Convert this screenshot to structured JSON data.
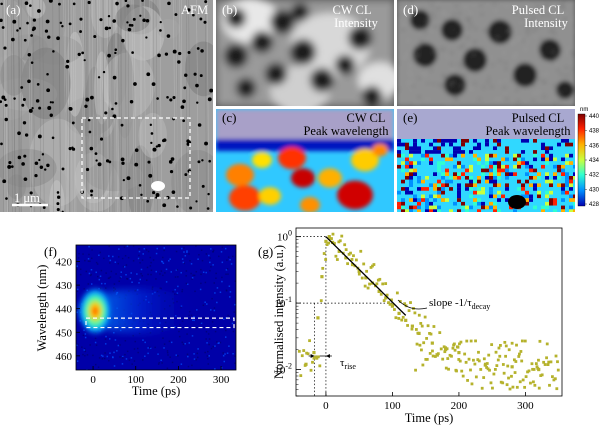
{
  "panels": {
    "a": {
      "letter": "(a)",
      "title": "AFM",
      "scale_bar": "1 μm"
    },
    "b": {
      "letter": "(b)",
      "title_line1": "CW CL",
      "title_line2": "Intensity"
    },
    "c": {
      "letter": "(c)",
      "title_line1": "CW CL",
      "title_line2": "Peak wavelength"
    },
    "d": {
      "letter": "(d)",
      "title_line1": "Pulsed CL",
      "title_line2": "Intensity"
    },
    "e": {
      "letter": "(e)",
      "title_line1": "Pulsed CL",
      "title_line2": "Peak wavelength"
    },
    "f": {
      "letter": "(f)"
    },
    "g": {
      "letter": "(g)",
      "slope_label": "slope -1/τ",
      "slope_sub": "decay",
      "rise_label": "τ",
      "rise_sub": "rise"
    }
  },
  "colorbar": {
    "unit": "nm",
    "ticks": [
      "440",
      "438",
      "436",
      "434",
      "432",
      "430",
      "428"
    ],
    "colors": [
      "#7f0000",
      "#ff2000",
      "#ffb000",
      "#c8ff40",
      "#30ffd0",
      "#0090ff",
      "#0000b0"
    ]
  },
  "chart_data": [
    {
      "type": "heatmap",
      "panel": "f",
      "xlabel": "Time (ps)",
      "ylabel": "Wavelength (nm)",
      "x_ticks": [
        "0",
        "100",
        "200",
        "300"
      ],
      "y_ticks": [
        "420",
        "430",
        "440",
        "450",
        "460"
      ],
      "xlim": [
        -40,
        335
      ],
      "ylim": [
        466,
        413
      ],
      "peak": {
        "time_ps": 5,
        "wavelength_nm": 441
      },
      "highlight_band_nm": [
        444,
        448
      ]
    },
    {
      "type": "scatter",
      "panel": "g",
      "xlabel": "Time (ps)",
      "ylabel": "Normalised intensity (a.u.)",
      "x_ticks": [
        "0",
        "100",
        "200",
        "300"
      ],
      "y_ticks": [
        {
          "base": "10",
          "exp": "0",
          "value": 1
        },
        {
          "base": "10",
          "exp": "-1",
          "value": 0.1
        },
        {
          "base": "10",
          "exp": "-2",
          "value": 0.01
        }
      ],
      "xlim": [
        -45,
        355
      ],
      "ylim": [
        0.004,
        1.35
      ],
      "yscale": "log",
      "marker_color": "#b5b22c",
      "fit_color": "#000000",
      "fit": {
        "t0_ps": 0,
        "tau_decay_ps": 44,
        "t_end_ps": 120
      },
      "rise_time_ps": 17,
      "sample_points": [
        {
          "x": -30,
          "y": 0.012
        },
        {
          "x": -18,
          "y": 0.018
        },
        {
          "x": -12,
          "y": 0.06
        },
        {
          "x": -6,
          "y": 0.25
        },
        {
          "x": 0,
          "y": 0.85
        },
        {
          "x": 5,
          "y": 1.0
        },
        {
          "x": 10,
          "y": 0.82
        },
        {
          "x": 20,
          "y": 0.6
        },
        {
          "x": 30,
          "y": 0.48
        },
        {
          "x": 40,
          "y": 0.38
        },
        {
          "x": 50,
          "y": 0.3
        },
        {
          "x": 60,
          "y": 0.24
        },
        {
          "x": 70,
          "y": 0.2
        },
        {
          "x": 80,
          "y": 0.15
        },
        {
          "x": 90,
          "y": 0.12
        },
        {
          "x": 100,
          "y": 0.09
        },
        {
          "x": 110,
          "y": 0.07
        },
        {
          "x": 120,
          "y": 0.055
        },
        {
          "x": 130,
          "y": 0.045
        },
        {
          "x": 140,
          "y": 0.035
        },
        {
          "x": 160,
          "y": 0.025
        },
        {
          "x": 180,
          "y": 0.02
        },
        {
          "x": 200,
          "y": 0.018
        },
        {
          "x": 240,
          "y": 0.012
        },
        {
          "x": 280,
          "y": 0.011
        },
        {
          "x": 320,
          "y": 0.01
        }
      ]
    }
  ]
}
